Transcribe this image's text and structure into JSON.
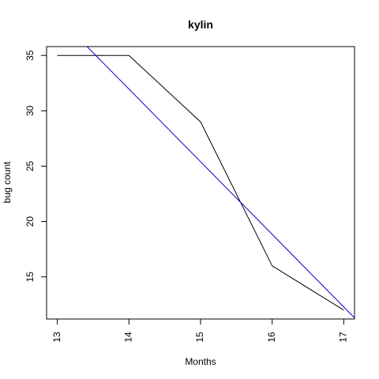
{
  "chart_data": {
    "type": "line",
    "title": "kylin",
    "xlabel": "Months",
    "ylabel": "bug count",
    "xlim": [
      12.85,
      17.15
    ],
    "ylim": [
      11.2,
      35.8
    ],
    "x_ticks": [
      "13",
      "14",
      "15",
      "16",
      "17"
    ],
    "y_ticks": [
      "15",
      "20",
      "25",
      "30",
      "35"
    ],
    "grid": false,
    "series": [
      {
        "color": "#000000",
        "x": [
          13,
          14,
          15,
          16,
          17
        ],
        "y": [
          35,
          35,
          29,
          16,
          12
        ]
      },
      {
        "color": "#0000cc",
        "x": [
          13.4,
          17.15
        ],
        "y": [
          35.9,
          11.3
        ]
      }
    ]
  }
}
